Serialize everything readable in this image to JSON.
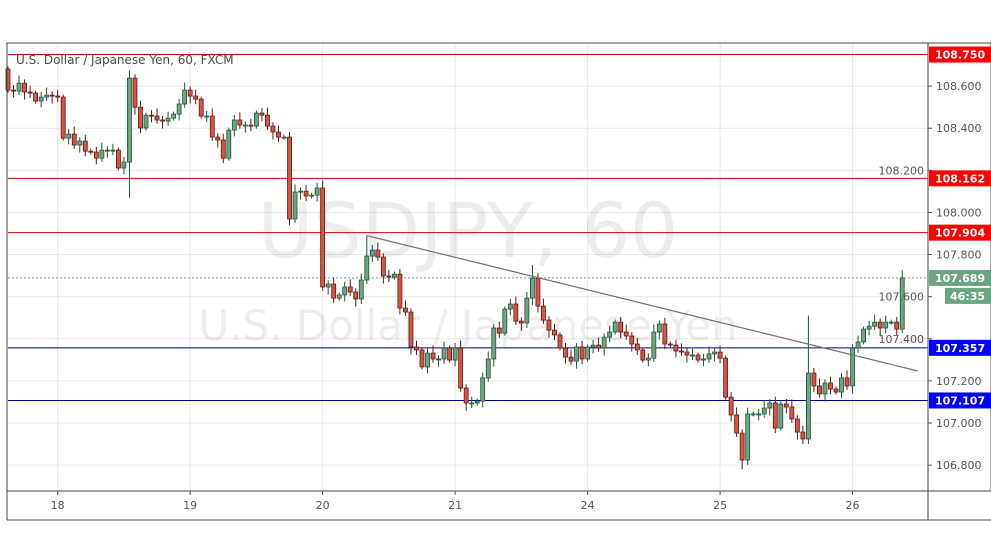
{
  "chart_data": {
    "type": "candlestick",
    "title": "U.S. Dollar / Japanese Yen, 60, FXCM",
    "watermark": {
      "symbol": "USDJPY, 60",
      "name": "U.S. Dollar / Japanese Yen"
    },
    "ylim": [
      106.677,
      108.8
    ],
    "xlim_candles": [
      -0.5,
      166.5
    ],
    "y_ticks": [
      "108.600",
      "108.400",
      "108.200",
      "108.000",
      "107.800",
      "107.600",
      "107.400",
      "107.200",
      "107.000",
      "106.800"
    ],
    "x_ticks": [
      {
        "label": "18",
        "candle": 9
      },
      {
        "label": "19",
        "candle": 33
      },
      {
        "label": "20",
        "candle": 57
      },
      {
        "label": "21",
        "candle": 81
      },
      {
        "label": "24",
        "candle": 105
      },
      {
        "label": "25",
        "candle": 129
      },
      {
        "label": "26",
        "candle": 153
      }
    ],
    "grid": true,
    "first_open": 108.681,
    "closes": [
      108.581,
      108.576,
      108.614,
      108.572,
      108.567,
      108.529,
      108.548,
      108.557,
      108.553,
      108.548,
      108.353,
      108.372,
      108.32,
      108.339,
      108.291,
      108.287,
      108.258,
      108.296,
      108.296,
      108.296,
      108.211,
      108.239,
      108.638,
      108.5,
      108.401,
      108.462,
      108.458,
      108.439,
      108.434,
      108.448,
      108.467,
      108.515,
      108.581,
      108.553,
      108.538,
      108.458,
      108.458,
      108.358,
      108.344,
      108.258,
      108.391,
      108.439,
      108.415,
      108.415,
      108.41,
      108.472,
      108.462,
      108.41,
      108.382,
      108.358,
      108.358,
      107.969,
      108.097,
      108.101,
      108.078,
      108.082,
      108.116,
      107.646,
      107.66,
      107.593,
      107.608,
      107.646,
      107.622,
      107.589,
      107.679,
      107.793,
      107.821,
      107.788,
      107.698,
      107.693,
      107.707,
      107.546,
      107.527,
      107.361,
      107.347,
      107.266,
      107.332,
      107.304,
      107.304,
      107.356,
      107.299,
      107.356,
      107.166,
      107.095,
      107.095,
      107.104,
      107.214,
      107.304,
      107.451,
      107.427,
      107.541,
      107.565,
      107.484,
      107.475,
      107.593,
      107.688,
      107.555,
      107.489,
      107.441,
      107.418,
      107.356,
      107.313,
      107.294,
      107.361,
      107.304,
      107.361,
      107.37,
      107.356,
      107.408,
      107.432,
      107.479,
      107.432,
      107.413,
      107.375,
      107.347,
      107.299,
      107.308,
      107.432,
      107.47,
      107.375,
      107.37,
      107.342,
      107.337,
      107.323,
      107.323,
      107.299,
      107.304,
      107.328,
      107.337,
      107.308,
      107.123,
      107.038,
      106.952,
      106.824,
      107.043,
      107.043,
      107.043,
      107.071,
      107.095,
      106.976,
      107.09,
      107.076,
      107.019,
      106.957,
      106.924,
      107.237,
      107.176,
      107.138,
      107.19,
      107.161,
      107.147,
      107.214,
      107.176,
      107.356,
      107.385,
      107.446,
      107.46,
      107.479,
      107.451,
      107.479,
      107.479,
      107.446,
      107.689
    ],
    "wick_overrides": [
      {
        "candle": 22,
        "high": 108.675,
        "low": 108.07
      },
      {
        "candle": 65,
        "high": 107.89,
        "low": 107.66
      },
      {
        "candle": 95,
        "high": 107.75,
        "low": 107.56
      },
      {
        "candle": 133,
        "high": 106.97,
        "low": 106.78
      },
      {
        "candle": 145,
        "high": 107.51,
        "low": 106.9
      }
    ],
    "trendline": {
      "from": {
        "candle": 65,
        "price": 107.89
      },
      "to": {
        "candle": 164.8,
        "price": 107.247
      },
      "color": "#707070"
    },
    "levels": [
      {
        "price": 108.75,
        "label": "108.750",
        "color": "#ff0000"
      },
      {
        "price": 108.162,
        "label": "108.162",
        "color": "#ff0000"
      },
      {
        "price": 107.904,
        "label": "107.904",
        "color": "#ff0000"
      },
      {
        "price": 107.357,
        "label": "107.357",
        "color": "#0000ff"
      },
      {
        "price": 107.107,
        "label": "107.107",
        "color": "#0000ff"
      }
    ],
    "current": {
      "price": 107.689,
      "label": "107.689",
      "countdown": "46:35",
      "color": "#6ba583"
    },
    "colors": {
      "up": "#6ba583",
      "up_border": "#225437",
      "down": "#d75442",
      "down_border": "#5b1a13",
      "grid": "#e9e9e9",
      "axis": "#555555"
    }
  }
}
